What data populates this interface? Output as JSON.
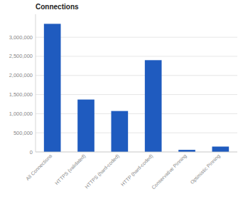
{
  "chart_data": {
    "type": "bar",
    "title": "Connections",
    "categories": [
      "All Connections",
      "HTTPS (validated)",
      "HTTPS (hard-coded)",
      "HTTP (hard-coded)",
      "Conservative Pinning",
      "Optimistic Pinning"
    ],
    "values": [
      3350000,
      1370000,
      1070000,
      2400000,
      55000,
      140000
    ],
    "color": "#1f5bbf",
    "ylim": [
      0,
      3600000
    ],
    "yticks": [
      0,
      {
        "value": 500000,
        "label": "500,000"
      },
      {
        "value": 1000000,
        "label": "1,000,000"
      },
      {
        "value": 1500000,
        "label": "1,500,000"
      },
      {
        "value": 2000000,
        "label": "2,000,000"
      },
      {
        "value": 2500000,
        "label": "2,500,000"
      },
      {
        "value": 3000000,
        "label": "3,000,000"
      }
    ],
    "grid": true
  }
}
